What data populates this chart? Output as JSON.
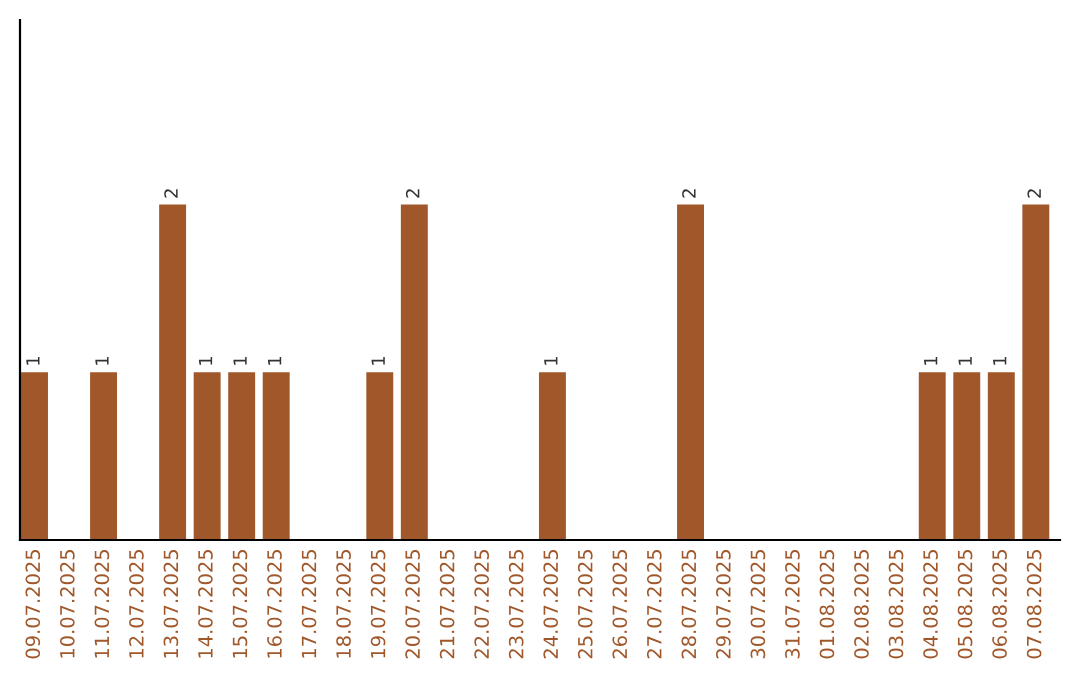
{
  "chart_data": {
    "type": "bar",
    "categories": [
      "09.07.2025",
      "10.07.2025",
      "11.07.2025",
      "12.07.2025",
      "13.07.2025",
      "14.07.2025",
      "15.07.2025",
      "16.07.2025",
      "17.07.2025",
      "18.07.2025",
      "19.07.2025",
      "20.07.2025",
      "21.07.2025",
      "22.07.2025",
      "23.07.2025",
      "24.07.2025",
      "25.07.2025",
      "26.07.2025",
      "27.07.2025",
      "28.07.2025",
      "29.07.2025",
      "30.07.2025",
      "31.07.2025",
      "01.08.2025",
      "02.08.2025",
      "03.08.2025",
      "04.08.2025",
      "05.08.2025",
      "06.08.2025",
      "07.08.2025"
    ],
    "values": [
      1,
      0,
      1,
      0,
      2,
      1,
      1,
      1,
      0,
      0,
      1,
      2,
      0,
      0,
      0,
      1,
      0,
      0,
      0,
      2,
      0,
      0,
      0,
      0,
      0,
      0,
      1,
      1,
      1,
      2
    ],
    "value_labels": [
      "1",
      null,
      "1",
      null,
      "2",
      "1",
      "1",
      "1",
      null,
      null,
      "1",
      "2",
      null,
      null,
      null,
      "1",
      null,
      null,
      null,
      "2",
      null,
      null,
      null,
      null,
      null,
      null,
      "1",
      "1",
      "1",
      "2"
    ],
    "color": "#a0572a",
    "ylim": [
      0,
      3.1
    ],
    "tick_labels": "x",
    "grid": false
  }
}
